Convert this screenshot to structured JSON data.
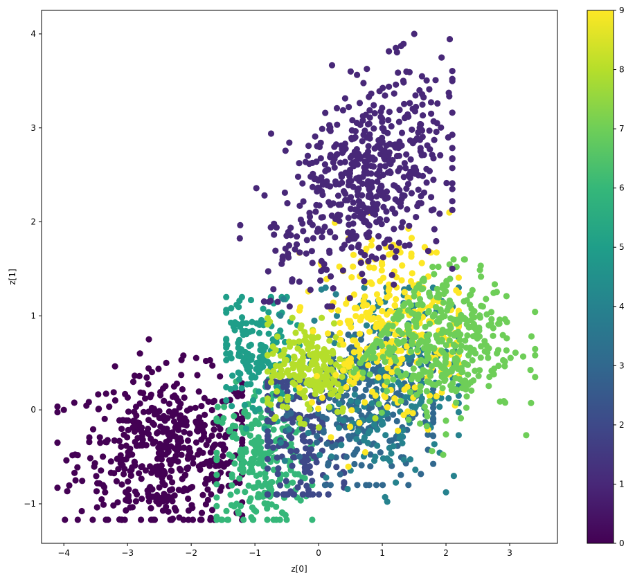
{
  "chart_data": {
    "type": "scatter",
    "title": "",
    "xlabel": "z[0]",
    "ylabel": "z[1]",
    "xlim": [
      -4.35,
      3.75
    ],
    "ylim": [
      -1.42,
      4.25
    ],
    "x_ticks": [
      -4,
      -3,
      -2,
      -1,
      0,
      1,
      2,
      3
    ],
    "y_ticks": [
      -1,
      0,
      1,
      2,
      3,
      4
    ],
    "colormap": "viridis",
    "color_value_range": [
      0,
      9
    ],
    "colorbar_ticks": [
      0,
      1,
      2,
      3,
      4,
      5,
      6,
      7,
      8,
      9
    ],
    "grid": false,
    "clusters": [
      {
        "label": 0,
        "color": "#440154",
        "center": [
          -2.35,
          -0.45
        ],
        "spread": [
          0.72,
          0.42
        ],
        "extent": {
          "x": [
            -4.1,
            -1.2
          ],
          "y": [
            -1.17,
            0.75
          ]
        }
      },
      {
        "label": 1,
        "color": "#482878",
        "center": [
          0.75,
          2.45
        ],
        "spread": [
          0.6,
          0.55
        ],
        "extent": {
          "x": [
            -1.25,
            2.1
          ],
          "y": [
            1.1,
            4.0
          ]
        }
      },
      {
        "label": 2,
        "color": "#3e4989",
        "center": [
          -0.3,
          -0.3
        ],
        "spread": [
          0.4,
          0.45
        ],
        "extent": {
          "x": [
            -0.8,
            0.4
          ],
          "y": [
            -0.9,
            0.3
          ]
        }
      },
      {
        "label": 3,
        "color": "#31688e",
        "center": [
          0.8,
          0.05
        ],
        "spread": [
          0.55,
          0.45
        ],
        "extent": {
          "x": [
            -0.5,
            1.8
          ],
          "y": [
            -0.8,
            0.8
          ]
        }
      },
      {
        "label": 4,
        "color": "#26828e",
        "center": [
          1.0,
          0.3
        ],
        "spread": [
          0.6,
          0.55
        ],
        "extent": {
          "x": [
            -0.6,
            2.2
          ],
          "y": [
            -1.0,
            1.3
          ]
        }
      },
      {
        "label": 5,
        "color": "#1f9e89",
        "center": [
          -1.0,
          0.55
        ],
        "spread": [
          0.3,
          0.35
        ],
        "extent": {
          "x": [
            -1.45,
            -0.3
          ],
          "y": [
            -0.2,
            1.2
          ]
        }
      },
      {
        "label": 6,
        "color": "#35b779",
        "center": [
          -0.95,
          -0.55
        ],
        "spread": [
          0.4,
          0.4
        ],
        "extent": {
          "x": [
            -1.6,
            -0.1
          ],
          "y": [
            -1.17,
            0.3
          ]
        }
      },
      {
        "label": 7,
        "color": "#6ece58",
        "center": [
          1.9,
          0.75
        ],
        "spread": [
          0.6,
          0.4
        ],
        "extent": {
          "x": [
            0.55,
            3.4
          ],
          "y": [
            -1.15,
            1.6
          ]
        }
      },
      {
        "label": 8,
        "color": "#b5de2b",
        "center": [
          -0.1,
          0.45
        ],
        "spread": [
          0.35,
          0.25
        ],
        "extent": {
          "x": [
            -0.8,
            0.9
          ],
          "y": [
            -0.5,
            1.3
          ]
        }
      },
      {
        "label": 9,
        "color": "#fde725",
        "center": [
          1.1,
          0.9
        ],
        "spread": [
          0.6,
          0.5
        ],
        "extent": {
          "x": [
            -0.3,
            2.2
          ],
          "y": [
            -1.1,
            2.1
          ]
        }
      }
    ]
  }
}
